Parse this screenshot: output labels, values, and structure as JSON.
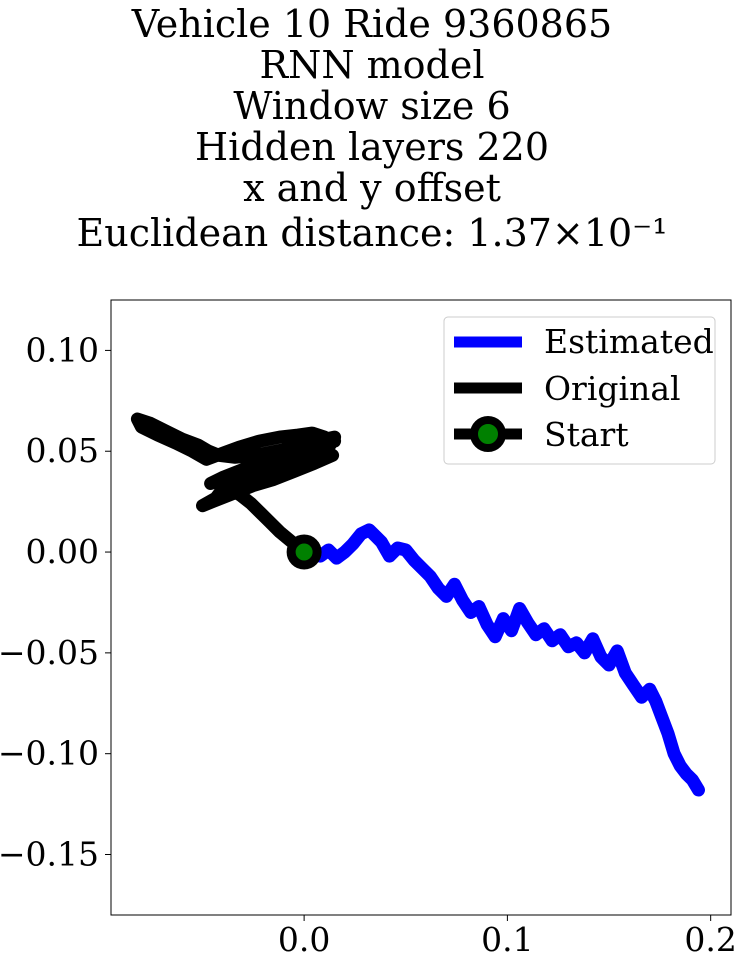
{
  "chart_data": {
    "type": "line",
    "title_lines": [
      "Vehicle 10 Ride 9360865",
      "RNN model",
      "Window size 6",
      "Hidden layers 220",
      "x and y offset",
      "Euclidean distance: 1.37×10⁻¹"
    ],
    "xlabel": "",
    "ylabel": "",
    "xlim": [
      -0.095,
      0.21
    ],
    "ylim": [
      -0.18,
      0.125
    ],
    "xticks": [
      0.0,
      0.1,
      0.2
    ],
    "xtick_labels": [
      "0.0",
      "0.1",
      "0.2"
    ],
    "yticks": [
      0.1,
      0.05,
      0.0,
      -0.05,
      -0.1,
      -0.15
    ],
    "ytick_labels": [
      "0.10",
      "0.05",
      "0.00",
      "−0.05",
      "−0.10",
      "−0.15"
    ],
    "grid": false,
    "legend_position": "top-right",
    "series": [
      {
        "name": "Estimated",
        "color": "#0000ff",
        "x": [
          0.0,
          0.004,
          0.008,
          0.012,
          0.016,
          0.02,
          0.024,
          0.028,
          0.032,
          0.035,
          0.038,
          0.042,
          0.046,
          0.05,
          0.054,
          0.058,
          0.062,
          0.066,
          0.07,
          0.074,
          0.078,
          0.082,
          0.086,
          0.09,
          0.094,
          0.098,
          0.102,
          0.106,
          0.11,
          0.114,
          0.118,
          0.122,
          0.126,
          0.13,
          0.134,
          0.138,
          0.142,
          0.146,
          0.15,
          0.154,
          0.158,
          0.162,
          0.166,
          0.17,
          0.173,
          0.176,
          0.179,
          0.182,
          0.185,
          0.188,
          0.191,
          0.194
        ],
        "y": [
          0.0,
          0.001,
          -0.002,
          0.001,
          -0.003,
          0.0,
          0.004,
          0.009,
          0.011,
          0.008,
          0.005,
          -0.002,
          0.002,
          0.001,
          -0.004,
          -0.008,
          -0.012,
          -0.018,
          -0.022,
          -0.016,
          -0.024,
          -0.03,
          -0.027,
          -0.036,
          -0.042,
          -0.033,
          -0.039,
          -0.028,
          -0.035,
          -0.041,
          -0.038,
          -0.044,
          -0.041,
          -0.047,
          -0.045,
          -0.05,
          -0.043,
          -0.052,
          -0.056,
          -0.049,
          -0.06,
          -0.066,
          -0.072,
          -0.068,
          -0.074,
          -0.082,
          -0.09,
          -0.1,
          -0.106,
          -0.11,
          -0.113,
          -0.118
        ]
      },
      {
        "name": "Original",
        "color": "#000000",
        "x": [
          0.0,
          -0.006,
          -0.012,
          -0.017,
          -0.022,
          -0.026,
          -0.031,
          -0.036,
          -0.043,
          -0.05,
          -0.045,
          -0.035,
          -0.025,
          -0.015,
          -0.005,
          0.005,
          0.014,
          0.009,
          -0.001,
          -0.011,
          -0.021,
          -0.031,
          -0.041,
          -0.044,
          -0.036,
          -0.026,
          -0.016,
          -0.006,
          0.004,
          0.012,
          0.015,
          0.006,
          -0.004,
          -0.014,
          -0.024,
          -0.034,
          -0.042,
          -0.047,
          -0.052,
          -0.06,
          -0.068,
          -0.076,
          -0.082,
          -0.08,
          -0.072,
          -0.063,
          -0.055,
          -0.048,
          -0.04,
          -0.032,
          -0.022,
          -0.012,
          -0.003,
          0.004,
          0.01,
          0.014,
          0.012,
          0.003,
          -0.007,
          -0.017,
          -0.027,
          -0.037,
          -0.046,
          -0.04,
          -0.03,
          -0.02,
          -0.01,
          0.0,
          0.008,
          0.015
        ],
        "y": [
          0.0,
          0.005,
          0.01,
          0.015,
          0.02,
          0.024,
          0.028,
          0.031,
          0.027,
          0.023,
          0.025,
          0.029,
          0.033,
          0.036,
          0.04,
          0.044,
          0.048,
          0.051,
          0.047,
          0.042,
          0.038,
          0.034,
          0.03,
          0.026,
          0.03,
          0.035,
          0.04,
          0.045,
          0.05,
          0.054,
          0.057,
          0.055,
          0.052,
          0.05,
          0.048,
          0.047,
          0.048,
          0.05,
          0.053,
          0.056,
          0.06,
          0.064,
          0.066,
          0.062,
          0.058,
          0.054,
          0.05,
          0.046,
          0.049,
          0.052,
          0.055,
          0.057,
          0.058,
          0.059,
          0.057,
          0.055,
          0.052,
          0.049,
          0.046,
          0.043,
          0.04,
          0.037,
          0.034,
          0.037,
          0.041,
          0.045,
          0.049,
          0.052,
          0.054,
          0.055
        ]
      }
    ],
    "start_point": {
      "name": "Start",
      "x": 0.0,
      "y": 0.0,
      "marker_color": "#008000",
      "edge_color": "#000000"
    }
  }
}
